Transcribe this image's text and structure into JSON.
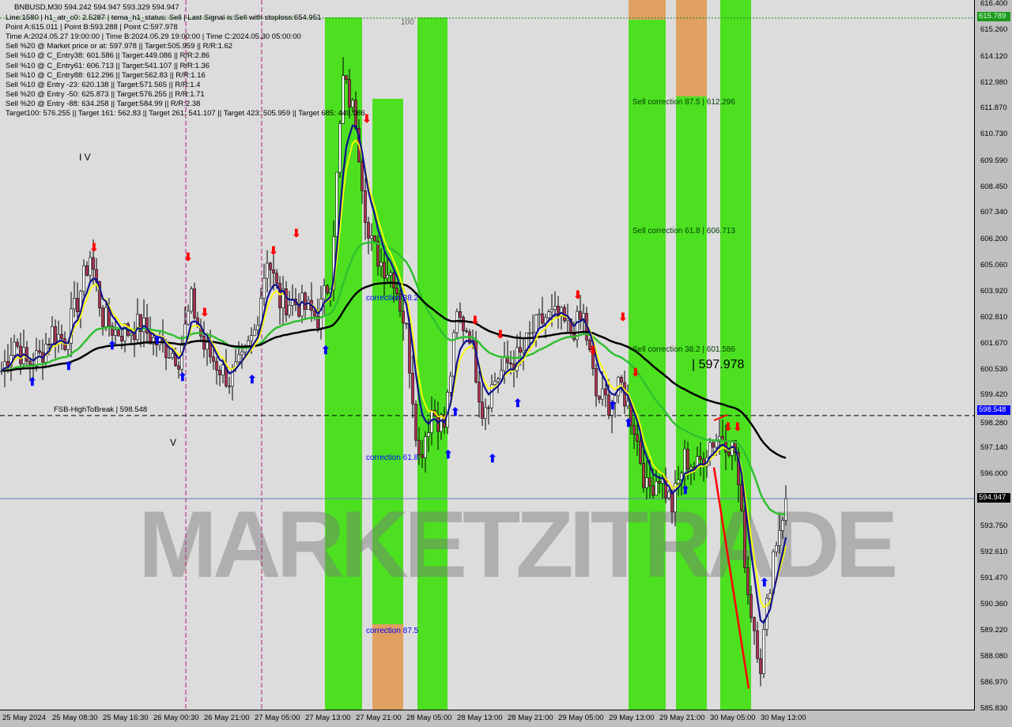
{
  "symbol_line": "BNBUSD,M30  594.242 594.947 593.329 594.947",
  "info_lines": [
    "Line:1580 | h1_atr_c0: 2.5287 | tema_h1_status: Sell | Last Signal is:Sell with stoploss:654.951",
    "Point A:615.011 | Point B:593.288 | Point C:597.978",
    "Time A:2024.05.27 19:00:00 | Time B:2024.05.29 19:00:00 | Time C:2024.05.30 05:00:00",
    "Sell %20 @ Market price or at: 597.978 || Target:505.959 || R/R:1.62",
    "Sell %10 @ C_Entry38: 601.586 || Target:449.086 || R/R:2.86",
    "Sell %10 @ C_Entry61: 606.713 || Target:541.107 || R/R:1.36",
    "Sell %10 @ C_Entry88: 612.296 || Target:562.83 || R/R:1.16",
    "Sell %10 @ Entry -23: 620.138 || Target:571.565 || R/R:1.4",
    "Sell %20 @ Entry -50: 625.873 || Target:576.255 || R/R:1.71",
    "Sell %20 @ Entry -88: 634.258 || Target:584.99 || R/R:2.38",
    "Target100: 576.255 || Target 161: 562.83 || Target 261: 541.107 || Target 423: 505.959 || Target 685: 449.086"
  ],
  "annotations": {
    "sell_corr_875": "Sell correction 87.5 | 612.296",
    "sell_corr_618": "Sell correction 61.8 | 606.713",
    "sell_corr_382": "Sell correction 38.2 | 601.586",
    "point_c": "| 597.978",
    "corr_382": "correction 38.2",
    "corr_618": "correction 61.8",
    "corr_875": "correction 87.5",
    "level_100": "100",
    "wave_iv": "I V",
    "wave_v": "V",
    "fsb": "FSB-HighToBreak | 598.548",
    "watermark": "MARKETZITRADE"
  },
  "price_tags": {
    "top_green": "615.789",
    "fsb": "598.548",
    "current": "594.947"
  },
  "colors": {
    "bg": "#dcdcdc",
    "zone_green": "#33e000",
    "zone_orange": "#e0a060",
    "fsb": "#0000ff",
    "current": "#000000",
    "ma_slow": "#000000",
    "ma_green": "#30c030",
    "ma_blue": "#101090",
    "ma_yellow": "#ffff00"
  },
  "chart_data": {
    "type": "candlestick",
    "title": "BNBUSD,M30",
    "ylim": [
      585.83,
      616.4
    ],
    "yticks": [
      "616.400",
      "615.260",
      "614.120",
      "612.980",
      "611.870",
      "610.730",
      "609.590",
      "608.450",
      "607.340",
      "606.200",
      "605.060",
      "603.920",
      "602.810",
      "601.670",
      "600.530",
      "599.420",
      "598.280",
      "597.140",
      "596.000",
      "593.750",
      "592.610",
      "591.470",
      "590.360",
      "589.220",
      "588.080",
      "586.970",
      "585.830"
    ],
    "xticks": [
      "25 May 2024",
      "25 May 08:30",
      "25 May 16:30",
      "26 May 00:30",
      "26 May 21:00",
      "27 May 05:00",
      "27 May 13:00",
      "27 May 21:00",
      "28 May 05:00",
      "28 May 13:00",
      "28 May 21:00",
      "29 May 05:00",
      "29 May 13:00",
      "29 May 21:00",
      "30 May 05:00",
      "30 May 13:00"
    ],
    "approx_close_every_2_bars": [
      600.5,
      601.8,
      600.8,
      601.1,
      602.2,
      601.8,
      603.5,
      605.5,
      602.8,
      602.2,
      602.2,
      602.5,
      601.8,
      601.5,
      601.1,
      603.5,
      601.5,
      600.8,
      600.1,
      600.8,
      602.2,
      605.5,
      603.5,
      603.5,
      603.2,
      602.8,
      604.6,
      613.1,
      611.4,
      606.2,
      605.2,
      604.6,
      602.2,
      596.7,
      598.8,
      598.1,
      602.8,
      602.2,
      598.8,
      600.1,
      600.8,
      601.1,
      602.2,
      602.8,
      602.8,
      602.2,
      602.8,
      599.4,
      599.1,
      599.8,
      598.1,
      595.3,
      596.0,
      594.6,
      596.7,
      596.3,
      597.4,
      597.7,
      597.0,
      590.9,
      587.8,
      592.6,
      594.9
    ],
    "last_ohlc": {
      "open": 594.242,
      "high": 594.947,
      "low": 593.329,
      "close": 594.947
    }
  }
}
